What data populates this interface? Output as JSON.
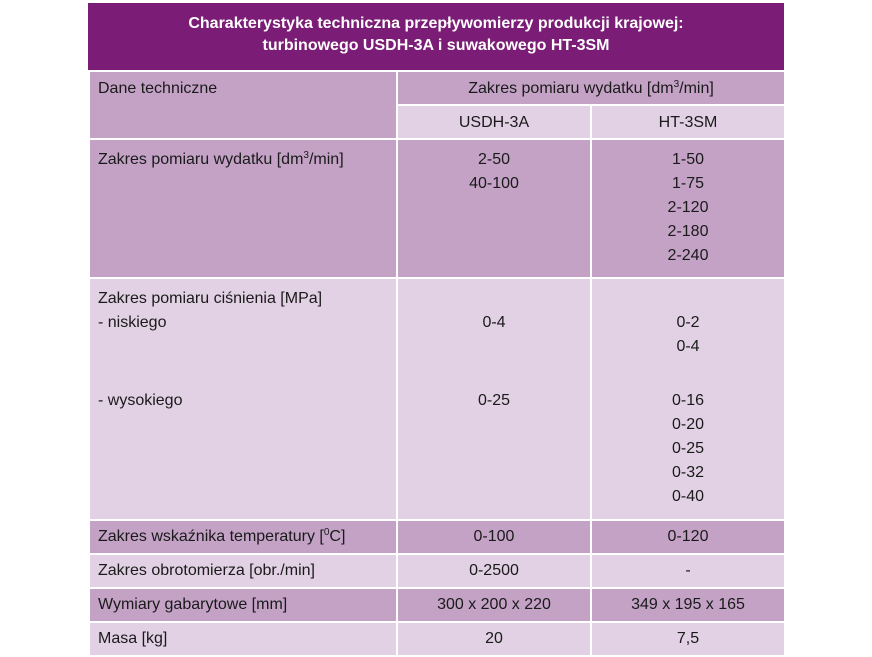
{
  "title": {
    "line1": "Charakterystyka techniczna przepływomierzy produkcji krajowej:",
    "line2": "turbinowego USDH-3A i suwakowego HT-3SM"
  },
  "header": {
    "col1": "Dane techniczne",
    "group_pre": "Zakres pomiaru wydatku [dm",
    "group_sup": "3",
    "group_post": "/min]",
    "sub1": "USDH-3A",
    "sub2": "HT-3SM"
  },
  "rows": {
    "flow": {
      "label_pre": "Zakres pomiaru wydatku [dm",
      "label_sup": "3",
      "label_post": "/min]",
      "usdh": [
        "2-50",
        "40-100"
      ],
      "ht": [
        "1-50",
        "1-75",
        "2-120",
        "2-180",
        "2-240"
      ]
    },
    "pressure": {
      "label": "Zakres pomiaru ciśnienia [MPa]",
      "low_label": "- niskiego",
      "high_label": "- wysokiego",
      "usdh_low": "0-4",
      "usdh_high": "0-25",
      "ht_low": [
        "0-2",
        "0-4"
      ],
      "ht_high": [
        "0-16",
        "0-20",
        "0-25",
        "0-32",
        "0-40"
      ]
    },
    "temperature": {
      "label_pre": "Zakres wskaźnika temperatury [",
      "label_sup": "0",
      "label_post": "C]",
      "usdh": "0-100",
      "ht": "0-120"
    },
    "tachometer": {
      "label": "Zakres obrotomierza [obr./min]",
      "usdh": "0-2500",
      "ht": "-"
    },
    "dimensions": {
      "label": "Wymiary gabarytowe [mm]",
      "usdh": "300 x 200 x 220",
      "ht": "349 x 195 x 165"
    },
    "mass": {
      "label": "Masa [kg]",
      "usdh": "20",
      "ht": "7,5"
    }
  }
}
